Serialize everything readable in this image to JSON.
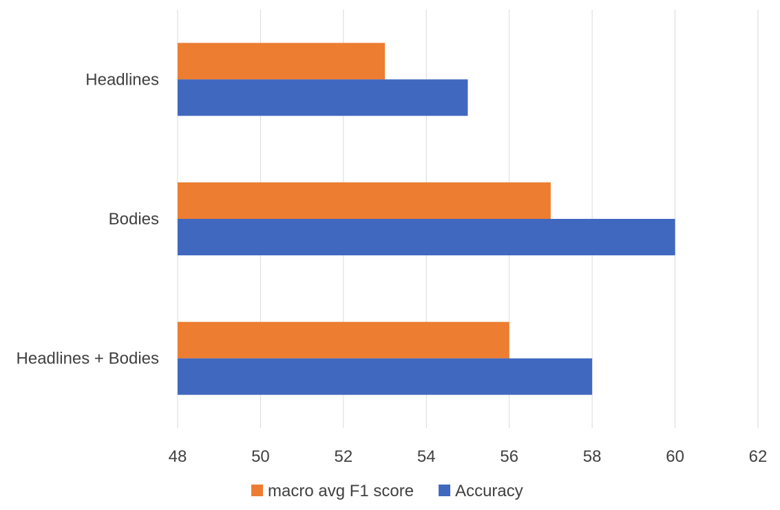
{
  "chart_data": {
    "type": "bar",
    "orientation": "horizontal",
    "categories": [
      "Headlines",
      "Bodies",
      "Headlines + Bodies"
    ],
    "series": [
      {
        "name": "macro avg F1 score",
        "color": "#ED7D31",
        "values": [
          53,
          57,
          56
        ]
      },
      {
        "name": "Accuracy",
        "color": "#4068BF",
        "values": [
          55,
          60,
          58
        ]
      }
    ],
    "xlim": [
      48,
      62
    ],
    "xticks": [
      48,
      50,
      52,
      54,
      56,
      58,
      60,
      62
    ],
    "grid": true,
    "legend_position": "bottom"
  }
}
